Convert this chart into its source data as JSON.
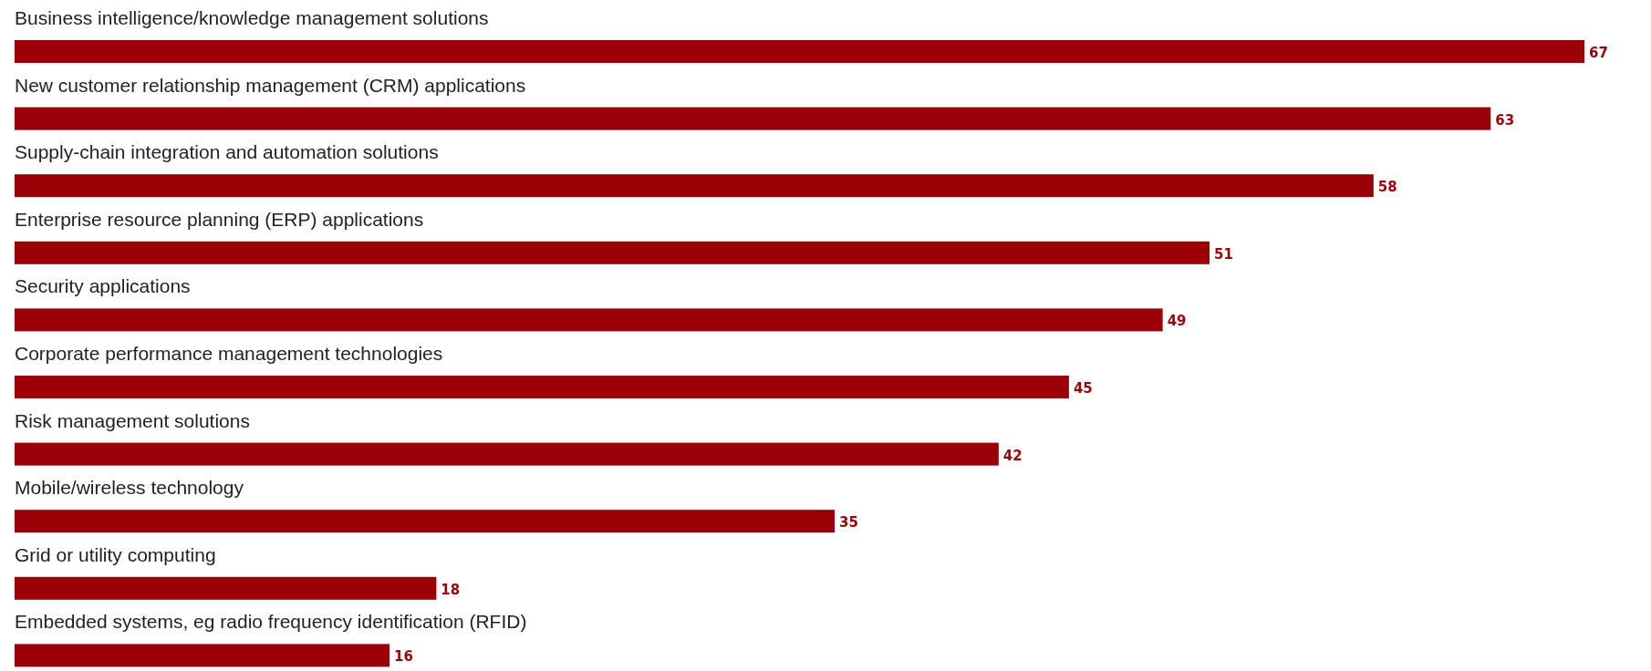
{
  "chart_data": {
    "type": "bar",
    "orientation": "horizontal",
    "data_labels": true,
    "color": "#9b0009",
    "categories": [
      "Business intelligence/knowledge management solutions",
      "New customer relationship management (CRM) applications",
      "Supply-chain integration and automation solutions",
      "Enterprise resource planning (ERP) applications",
      "Security applications",
      "Corporate performance management technologies",
      "Risk management solutions",
      "Mobile/wireless technology",
      "Grid or utility computing",
      "Embedded systems, eg radio frequency identification (RFID)"
    ],
    "values": [
      67,
      63,
      58,
      51,
      49,
      45,
      42,
      35,
      18,
      16
    ]
  }
}
